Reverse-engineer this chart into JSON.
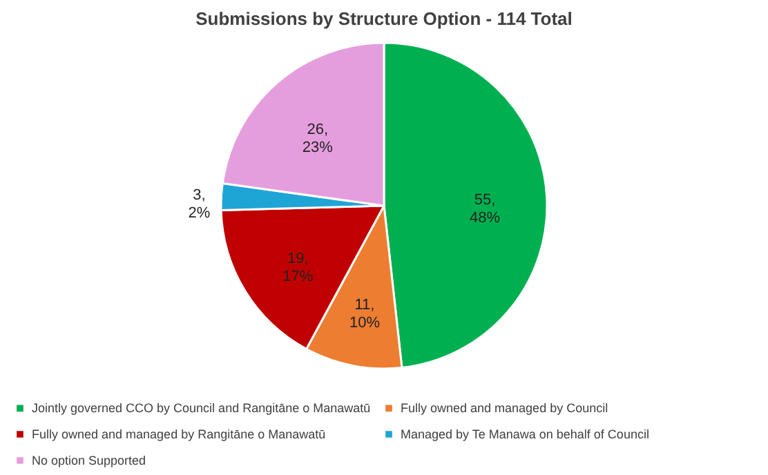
{
  "chart_data": {
    "type": "pie",
    "title": "Submissions by Structure Option - 114 Total",
    "categories": [
      "Jointly governed CCO by Council and Rangitāne o Manawatū",
      "Fully owned and managed by Council",
      "Fully owned and managed by Rangitāne o Manawatū",
      "Managed by Te Manawa on behalf of Council",
      "No option Supported"
    ],
    "values": [
      55,
      11,
      19,
      3,
      26
    ],
    "colors": [
      "#00b050",
      "#ed7d31",
      "#c00000",
      "#1ea5d6",
      "#e59edd"
    ],
    "value_labels": [
      "55, 48%",
      "11, 10%",
      "19, 17%",
      "3, 2%",
      "26, 23%"
    ],
    "legend": "bottom"
  }
}
